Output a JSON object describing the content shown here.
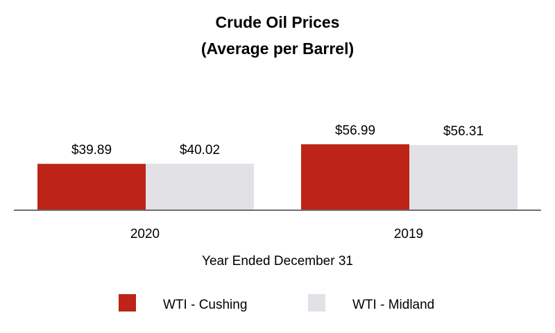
{
  "chart_data": {
    "type": "bar",
    "title_lines": [
      "Crude Oil Prices",
      "(Average per Barrel)"
    ],
    "categories": [
      "2020",
      "2019"
    ],
    "series": [
      {
        "name": "WTI - Cushing",
        "values": [
          39.89,
          56.99
        ],
        "labels": [
          "$39.89",
          "$56.99"
        ],
        "color": "#be2318"
      },
      {
        "name": "WTI - Midland",
        "values": [
          40.02,
          56.31
        ],
        "labels": [
          "$40.02",
          "$56.31"
        ],
        "color": "#e1e1e6"
      }
    ],
    "xlabel": "Year Ended December 31",
    "ylabel": "",
    "ylim": [
      0,
      100
    ],
    "grid": false,
    "legend_position": "bottom",
    "axis_color": "#6e6e6e"
  }
}
